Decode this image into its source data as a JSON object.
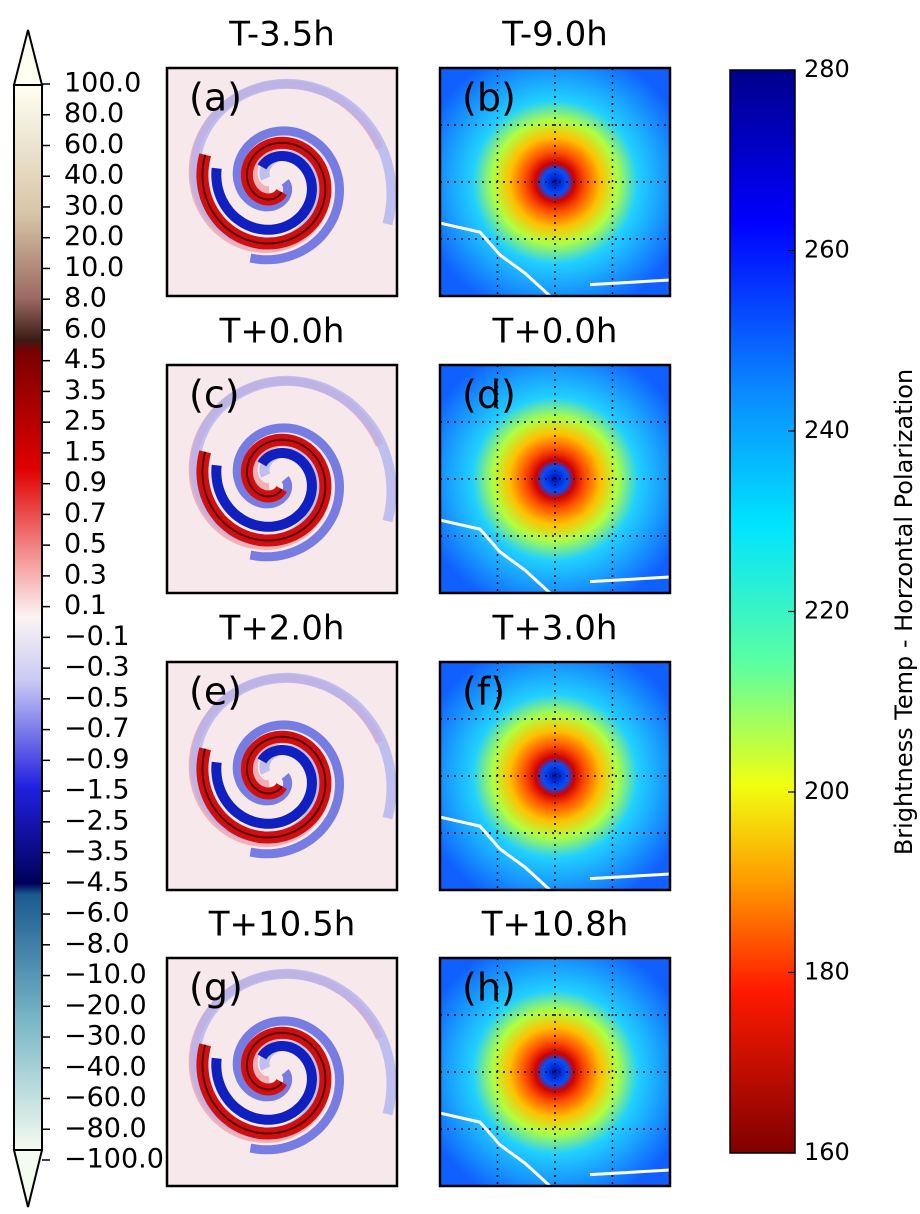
{
  "left_colorbar": {
    "ticks": [
      "100.0",
      "80.0",
      "60.0",
      "40.0",
      "30.0",
      "20.0",
      "10.0",
      "8.0",
      "6.0",
      "4.5",
      "3.5",
      "2.5",
      "1.5",
      "0.9",
      "0.7",
      "0.5",
      "0.3",
      "0.1",
      "−0.1",
      "−0.3",
      "−0.5",
      "−0.7",
      "−0.9",
      "−1.5",
      "−2.5",
      "−3.5",
      "−4.5",
      "−6.0",
      "−8.0",
      "−10.0",
      "−20.0",
      "−30.0",
      "−40.0",
      "−60.0",
      "−80.0",
      "−100.0"
    ]
  },
  "panels": [
    {
      "title": "T-3.5h",
      "label": "(a)"
    },
    {
      "title": "T-9.0h",
      "label": "(b)"
    },
    {
      "title": "T+0.0h",
      "label": "(c)"
    },
    {
      "title": "T+0.0h",
      "label": "(d)"
    },
    {
      "title": "T+2.0h",
      "label": "(e)"
    },
    {
      "title": "T+3.0h",
      "label": "(f)"
    },
    {
      "title": "T+10.5h",
      "label": "(g)"
    },
    {
      "title": "T+10.8h",
      "label": "(h)"
    }
  ],
  "right_colorbar": {
    "label": "Brightness Temp - Horzontal Polarization",
    "lim": [
      160,
      280
    ],
    "ticks": [
      160,
      180,
      200,
      220,
      240,
      260,
      280
    ]
  }
}
